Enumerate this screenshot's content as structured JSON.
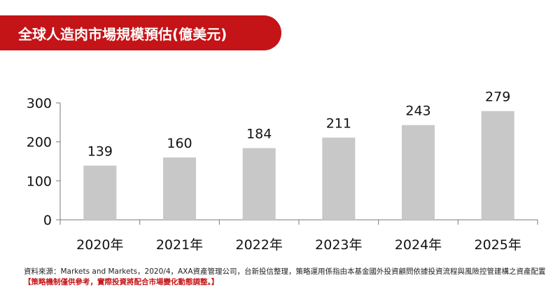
{
  "header": {
    "title": "全球人造肉市場規模預估(億美元)"
  },
  "colors": {
    "banner": "#c41417",
    "bar": "#c8c8c8",
    "axis": "#7a7a7a",
    "note_highlight": "#c41417"
  },
  "chart_data": {
    "type": "bar",
    "title": "全球人造肉市場規模預估(億美元)",
    "categories": [
      "2020年",
      "2021年",
      "2022年",
      "2023年",
      "2024年",
      "2025年"
    ],
    "values": [
      139,
      160,
      184,
      211,
      243,
      279
    ],
    "xlabel": "",
    "ylabel": "",
    "ylim": [
      0,
      300
    ],
    "yticks": [
      0,
      100,
      200,
      300
    ],
    "grid": false,
    "legend": "none",
    "data_labels": true
  },
  "footnote": {
    "source": "資料來源：Markets and Markets，2020/4，AXA資產管理公司，台新投信整理，策略運用係指由本基金國外投資顧問依據投資流程與風險控管建構之資產配置",
    "disclaimer": "【策略機制僅供參考，實際投資將配合市場變化動態調整。】"
  }
}
